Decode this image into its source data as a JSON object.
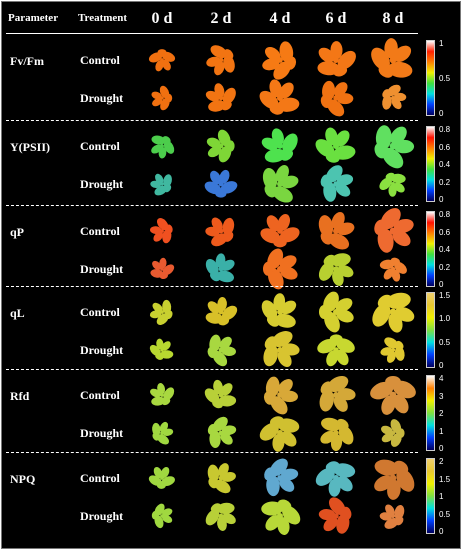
{
  "header": {
    "parameter": "Parameter",
    "treatment": "Treatment",
    "days": [
      "0 d",
      "2 d",
      "4 d",
      "6 d",
      "8 d"
    ]
  },
  "treatments": [
    "Control",
    "Drought"
  ],
  "panels": [
    {
      "name": "Fv/Fm",
      "ticks": [
        "1",
        "0.5",
        "0"
      ],
      "colors": {
        "control": [
          "#f07010",
          "#f27412",
          "#f67a14",
          "#f47716",
          "#f27a18"
        ],
        "drought": [
          "#f07010",
          "#f27412",
          "#f47816",
          "#f07212",
          "#ee9030"
        ]
      }
    },
    {
      "name": "Y(PSII)",
      "ticks": [
        "0.8",
        "0.6",
        "0.4",
        "0.2",
        "0"
      ],
      "colors": {
        "control": [
          "#4ccd4c",
          "#7ed636",
          "#4ee24e",
          "#6ae040",
          "#60e060"
        ],
        "drought": [
          "#40b8a0",
          "#3a78d8",
          "#7ad640",
          "#4cc4b0",
          "#8ae040"
        ]
      }
    },
    {
      "name": "qP",
      "ticks": [
        "0.8",
        "0.6",
        "0.4",
        "0.2",
        "0"
      ],
      "colors": {
        "control": [
          "#f05020",
          "#ee5a1c",
          "#ee6420",
          "#e87020",
          "#ee6a30"
        ],
        "drought": [
          "#e85a30",
          "#3ab0a8",
          "#f07020",
          "#b8d030",
          "#f08030"
        ]
      }
    },
    {
      "name": "qL",
      "ticks": [
        "1.5",
        "1.0",
        "0.5",
        "0"
      ],
      "colors": {
        "control": [
          "#c8d030",
          "#d8c028",
          "#d6cc30",
          "#d4d030",
          "#e0cc30"
        ],
        "drought": [
          "#b8d830",
          "#a8d840",
          "#d8c430",
          "#c8d830",
          "#e0c830"
        ]
      }
    },
    {
      "name": "Rfd",
      "ticks": [
        "4",
        "3",
        "2",
        "1",
        "0"
      ],
      "colors": {
        "control": [
          "#a8d840",
          "#b8d038",
          "#d8a838",
          "#d4a838",
          "#d8903c"
        ],
        "drought": [
          "#a0d840",
          "#a8d840",
          "#d0c030",
          "#d4b830",
          "#c8b840"
        ]
      }
    },
    {
      "name": "NPQ",
      "ticks": [
        "2",
        "1.5",
        "1",
        "0.5",
        "0"
      ],
      "colors": {
        "control": [
          "#a0d840",
          "#c8c830",
          "#60a8d0",
          "#58b8c0",
          "#d07830"
        ],
        "drought": [
          "#a0d840",
          "#b8d038",
          "#b8d838",
          "#e05020",
          "#e08040"
        ]
      }
    }
  ],
  "colorbar_gradients": {
    "fvfm": [
      "#ffffff",
      "#ff2000",
      "#ff8000",
      "#f0f000",
      "#40e040",
      "#00e0e0",
      "#0040ff",
      "#000060"
    ],
    "ypsii": [
      "#ffffff",
      "#ff1000",
      "#ff8000",
      "#f0f000",
      "#40e040",
      "#00e0e0",
      "#0040ff",
      "#000060"
    ],
    "qp": [
      "#ffffff",
      "#ff1000",
      "#ff8000",
      "#f0f000",
      "#40e040",
      "#00e0e0",
      "#0040ff",
      "#000060"
    ],
    "ql": [
      "#f0d070",
      "#e8c830",
      "#f0f000",
      "#80e040",
      "#00e0e0",
      "#0040ff",
      "#000060"
    ],
    "rfd": [
      "#ffffff",
      "#ff8000",
      "#f0f000",
      "#80e040",
      "#00e0e0",
      "#0040ff",
      "#000060"
    ],
    "npq": [
      "#f0d070",
      "#e8c830",
      "#f0f000",
      "#80e040",
      "#00e0e0",
      "#0040ff",
      "#000060"
    ]
  }
}
